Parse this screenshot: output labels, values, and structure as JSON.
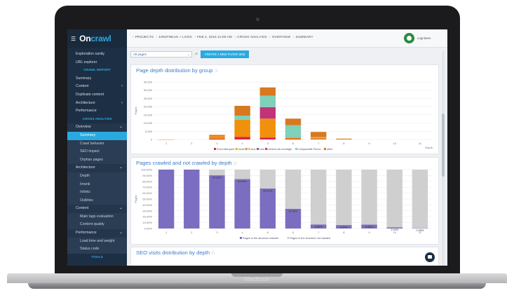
{
  "device": {
    "brand": "MacBook"
  },
  "app": {
    "logo_main": "On",
    "logo_accent": "crawl"
  },
  "breadcrumb": [
    "PROJECTS",
    "1001PNEUS + LOGS",
    "FEB 4, 2016 11:09 AM",
    "CROSS ANALYSIS",
    "OVERVIEW",
    "SUMMARY"
  ],
  "user": {
    "name": "cognitees"
  },
  "sidebar": {
    "top_items": [
      "Exploration sanity",
      "URL explorer"
    ],
    "crawl_report_title": "CRAWL REPORT",
    "crawl_items": [
      {
        "label": "Summary",
        "chevron": false
      },
      {
        "label": "Content",
        "chevron": true
      },
      {
        "label": "Duplicate content",
        "chevron": false
      },
      {
        "label": "Architecture",
        "chevron": true
      },
      {
        "label": "Performance",
        "chevron": false
      }
    ],
    "cross_analysis_title": "CROSS ANALYSIS",
    "overview_label": "Overview",
    "overview_subs": [
      "Summary",
      "Crawl behavior",
      "SEO impact",
      "Orphan pages"
    ],
    "architecture_label": "Architecture",
    "architecture_subs": [
      "Depth",
      "Inrank",
      "Inlinks",
      "Outlinks"
    ],
    "content_label": "Content",
    "content_subs": [
      "Main tags evaluation",
      "Content quality"
    ],
    "performance_label": "Performance",
    "performance_subs": [
      "Load time and weight",
      "Status code"
    ],
    "tools_title": "TOOLS"
  },
  "filter": {
    "selected": "All pages",
    "or_label": "or",
    "create_button": "CREATE A NEW FILTER (5/5)"
  },
  "charts": [
    {
      "title": "Page depth distribution by group",
      "type": "bar",
      "stacked": true,
      "ylabel": "Pages",
      "xlabel": "Depth",
      "ylim": [
        0,
        35000
      ],
      "yticks": [
        "0",
        "5,000",
        "10,000",
        "15,000",
        "20,000",
        "25,000",
        "30,000",
        "35,000"
      ],
      "categories": [
        "1",
        "2",
        "3",
        "4",
        "5",
        "6",
        "7",
        "8",
        "9",
        "10",
        "11"
      ],
      "series": [
        {
          "name": "Pneu-Marques",
          "color": "#d9254a",
          "values": [
            0,
            0,
            500,
            1500,
            1200,
            400,
            300,
            0,
            0,
            0,
            0
          ]
        },
        {
          "name": "home",
          "color": "#f5a623",
          "values": [
            0,
            0,
            0,
            0,
            0,
            0,
            0,
            0,
            0,
            0,
            0
          ]
        },
        {
          "name": "Pneus",
          "color": "#f0900c",
          "values": [
            2,
            0,
            1500,
            10500,
            11500,
            800,
            600,
            0,
            0,
            0,
            0
          ]
        },
        {
          "name": "cms",
          "color": "#7a5aa6",
          "values": [
            0,
            0,
            0,
            0,
            0,
            0,
            0,
            0,
            0,
            0,
            0
          ]
        },
        {
          "name": "centres-de-montage",
          "color": "#c0347a",
          "values": [
            0,
            0,
            0,
            0,
            7000,
            0,
            0,
            0,
            0,
            0,
            0
          ]
        },
        {
          "name": "Comparatifs Pneus",
          "color": "#7fd1b9",
          "values": [
            0,
            0,
            0,
            2500,
            7000,
            7500,
            500,
            0,
            0,
            0,
            0
          ]
        },
        {
          "name": "other",
          "color": "#d8791f",
          "values": [
            0,
            0,
            800,
            6000,
            5000,
            4000,
            3200,
            500,
            0,
            0,
            0
          ]
        }
      ]
    },
    {
      "title": "Pages crawled and not crawled by depth",
      "type": "bar",
      "stacked": true,
      "ylabel": "Pages",
      "ylim": [
        0,
        100
      ],
      "yticks": [
        "0.00%",
        "10.00%",
        "20.00%",
        "30.00%",
        "40.00%",
        "50.00%",
        "60.00%",
        "70.00%",
        "80.00%",
        "90.00%",
        "100.00%"
      ],
      "categories": [
        "1",
        "2",
        "3",
        "4",
        "5",
        "6",
        "7",
        "8",
        "9",
        "10",
        "11"
      ],
      "series": [
        {
          "name": "Pages in the structure crawled",
          "color": "#7b6dbf",
          "values": [
            100,
            100,
            90.39,
            83.88,
            68.01,
            33.35,
            6.89,
            5.84,
            6.58,
            2.04,
            0.39
          ]
        },
        {
          "name": "Pages in the structure not crawled",
          "color": "#cfcfcf",
          "values": [
            0,
            0,
            9.61,
            16.12,
            31.99,
            66.65,
            93.11,
            94.16,
            93.42,
            97.96,
            99.61
          ]
        }
      ],
      "data_labels": [
        "",
        "",
        "90.39%",
        "83.88%",
        "68.01%",
        "33.35%",
        "6.89%",
        "5.84%",
        "6.58%",
        "2.04%",
        "0.39%"
      ]
    },
    {
      "title": "SEO visits distribution by depth"
    }
  ],
  "chart_data": [
    {
      "type": "bar",
      "title": "Page depth distribution by group",
      "xlabel": "Depth",
      "ylabel": "Pages",
      "ylim": [
        0,
        35000
      ],
      "categories": [
        "1",
        "2",
        "3",
        "4",
        "5",
        "6",
        "7",
        "8",
        "9",
        "10",
        "11"
      ],
      "series": [
        {
          "name": "Pneu-Marques",
          "values": [
            0,
            0,
            500,
            1500,
            1200,
            400,
            300,
            0,
            0,
            0,
            0
          ]
        },
        {
          "name": "home",
          "values": [
            0,
            0,
            0,
            0,
            0,
            0,
            0,
            0,
            0,
            0,
            0
          ]
        },
        {
          "name": "Pneus",
          "values": [
            2,
            0,
            1500,
            10500,
            11500,
            800,
            600,
            0,
            0,
            0,
            0
          ]
        },
        {
          "name": "cms",
          "values": [
            0,
            0,
            0,
            0,
            0,
            0,
            0,
            0,
            0,
            0,
            0
          ]
        },
        {
          "name": "centres-de-montage",
          "values": [
            0,
            0,
            0,
            0,
            7000,
            0,
            0,
            0,
            0,
            0,
            0
          ]
        },
        {
          "name": "Comparatifs Pneus",
          "values": [
            0,
            0,
            0,
            2500,
            7000,
            7500,
            500,
            0,
            0,
            0,
            0
          ]
        },
        {
          "name": "other",
          "values": [
            0,
            0,
            800,
            6000,
            5000,
            4000,
            3200,
            500,
            0,
            0,
            0
          ]
        }
      ]
    },
    {
      "type": "bar",
      "title": "Pages crawled and not crawled by depth",
      "ylabel": "Pages",
      "ylim": [
        0,
        100
      ],
      "categories": [
        "1",
        "2",
        "3",
        "4",
        "5",
        "6",
        "7",
        "8",
        "9",
        "10",
        "11"
      ],
      "series": [
        {
          "name": "Pages in the structure crawled",
          "values": [
            100,
            100,
            90.39,
            83.88,
            68.01,
            33.35,
            6.89,
            5.84,
            6.58,
            2.04,
            0.39
          ]
        },
        {
          "name": "Pages in the structure not crawled",
          "values": [
            0,
            0,
            9.61,
            16.12,
            31.99,
            66.65,
            93.11,
            94.16,
            93.42,
            97.96,
            99.61
          ]
        }
      ]
    }
  ]
}
